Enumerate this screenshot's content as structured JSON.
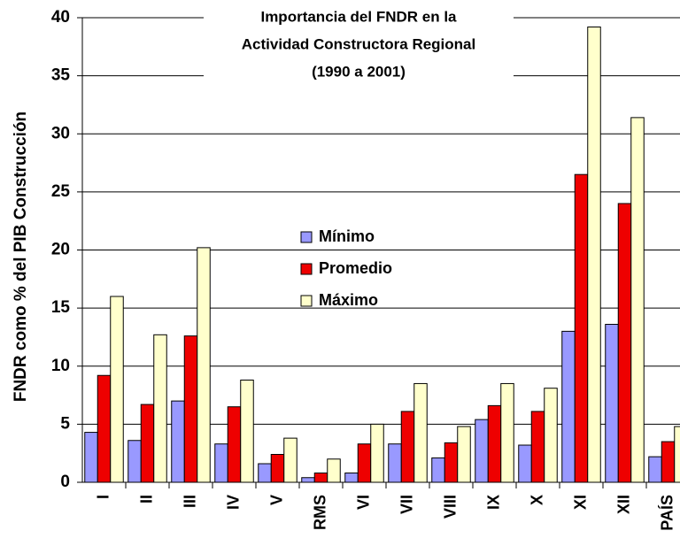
{
  "chart_data": {
    "type": "bar",
    "title": [
      "Importancia del FNDR en la",
      "Actividad Constructora Regional",
      "(1990 a 2001)"
    ],
    "y_label": "FNDR como % del PIB Construcción",
    "categories": [
      "I",
      "II",
      "III",
      "IV",
      "V",
      "RMS",
      "VI",
      "VII",
      "VIII",
      "IX",
      "X",
      "XI",
      "XII",
      "PAÍS"
    ],
    "series": [
      {
        "name": "Mínimo",
        "color": "#9999ff",
        "values": [
          4.3,
          3.6,
          7.0,
          3.3,
          1.6,
          0.4,
          0.8,
          3.3,
          2.1,
          5.4,
          3.2,
          13.0,
          13.6,
          2.2
        ]
      },
      {
        "name": "Promedio",
        "color": "#ee0000",
        "values": [
          9.2,
          6.7,
          12.6,
          6.5,
          2.4,
          0.8,
          3.3,
          6.1,
          3.4,
          6.6,
          6.1,
          26.5,
          24.0,
          3.5
        ]
      },
      {
        "name": "Máximo",
        "color": "#ffffcc",
        "values": [
          16.0,
          12.7,
          20.2,
          8.8,
          3.8,
          2.0,
          5.0,
          8.5,
          4.8,
          8.5,
          8.1,
          39.2,
          31.4,
          4.8
        ]
      }
    ],
    "ylim": [
      0,
      40
    ],
    "yticks": [
      0,
      5,
      10,
      15,
      20,
      25,
      30,
      35,
      40
    ],
    "grid": true
  }
}
